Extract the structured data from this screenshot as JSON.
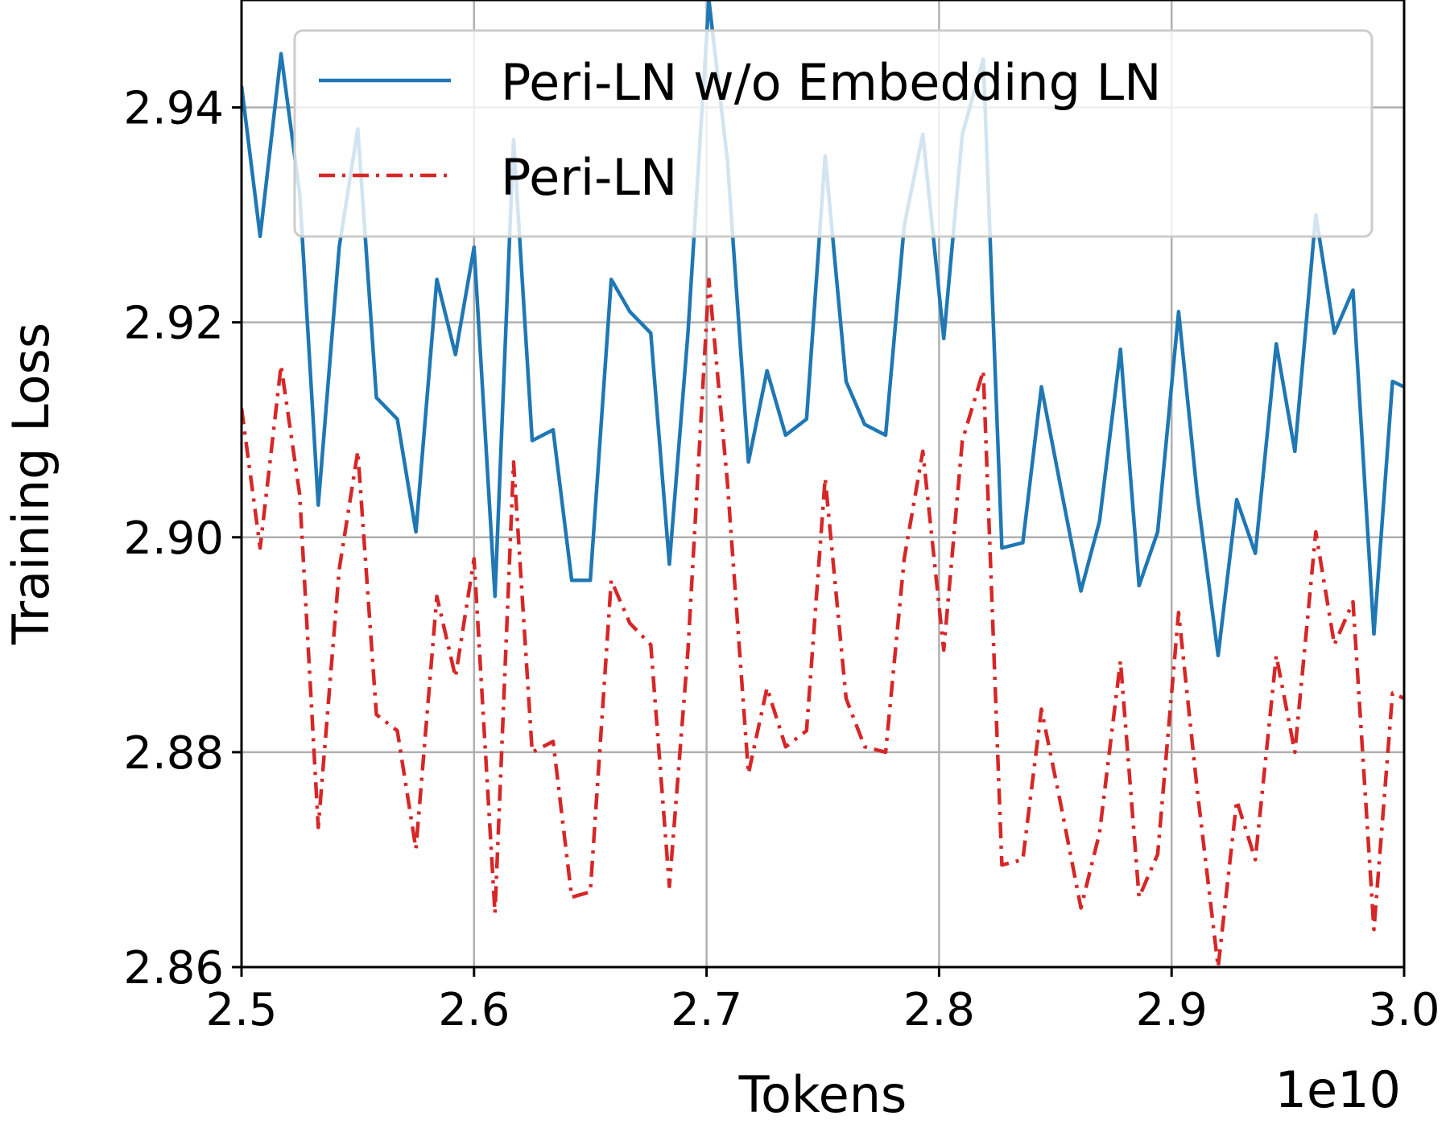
{
  "chart_data": {
    "type": "line",
    "title": "",
    "xlabel": "Tokens",
    "ylabel": "Training Loss",
    "x_offset_label": "1e10",
    "xlim": [
      2.5,
      3.0
    ],
    "ylim": [
      2.86,
      2.95
    ],
    "x_ticks": [
      2.5,
      2.6,
      2.7,
      2.8,
      2.9,
      3.0
    ],
    "x_tick_labels": [
      "2.5",
      "2.6",
      "2.7",
      "2.8",
      "2.9",
      "3.0"
    ],
    "y_ticks": [
      2.86,
      2.88,
      2.9,
      2.92,
      2.94
    ],
    "y_tick_labels": [
      "2.86",
      "2.88",
      "2.90",
      "2.92",
      "2.94"
    ],
    "grid": true,
    "legend_position": "top-right",
    "x": [
      2.5,
      2.508,
      2.517,
      2.525,
      2.533,
      2.542,
      2.55,
      2.558,
      2.567,
      2.575,
      2.584,
      2.592,
      2.6,
      2.609,
      2.617,
      2.625,
      2.634,
      2.642,
      2.65,
      2.659,
      2.667,
      2.676,
      2.684,
      2.692,
      2.701,
      2.709,
      2.718,
      2.726,
      2.734,
      2.743,
      2.751,
      2.76,
      2.768,
      2.777,
      2.785,
      2.793,
      2.802,
      2.81,
      2.819,
      2.827,
      2.836,
      2.844,
      2.852,
      2.861,
      2.869,
      2.878,
      2.886,
      2.894,
      2.903,
      2.911,
      2.92,
      2.928,
      2.936,
      2.945,
      2.953,
      2.962,
      2.97,
      2.978,
      2.987,
      2.995,
      3.0
    ],
    "series": [
      {
        "name": "Peri-LN w/o Embedding LN",
        "color": "#1f77b4",
        "line_style": "solid",
        "values": [
          2.942,
          2.928,
          2.945,
          2.932,
          2.903,
          2.927,
          2.938,
          2.913,
          2.911,
          2.9005,
          2.924,
          2.917,
          2.927,
          2.8945,
          2.937,
          2.909,
          2.91,
          2.896,
          2.896,
          2.924,
          2.921,
          2.919,
          2.8975,
          2.919,
          2.95,
          2.935,
          2.907,
          2.9155,
          2.9095,
          2.911,
          2.9355,
          2.9145,
          2.9105,
          2.9095,
          2.929,
          2.9375,
          2.9185,
          2.9375,
          2.9445,
          2.899,
          2.8995,
          2.914,
          2.905,
          2.895,
          2.9015,
          2.9175,
          2.8955,
          2.9005,
          2.921,
          2.904,
          2.889,
          2.9035,
          2.8985,
          2.918,
          2.908,
          2.93,
          2.919,
          2.923,
          2.891,
          2.9145,
          2.914
        ]
      },
      {
        "name": "Peri-LN",
        "color": "#d62728",
        "line_style": "dashdot",
        "values": [
          2.912,
          2.899,
          2.916,
          2.904,
          2.873,
          2.897,
          2.908,
          2.8835,
          2.882,
          2.871,
          2.8945,
          2.887,
          2.898,
          2.865,
          2.907,
          2.88,
          2.881,
          2.8665,
          2.867,
          2.896,
          2.892,
          2.89,
          2.8675,
          2.8895,
          2.924,
          2.905,
          2.878,
          2.886,
          2.8805,
          2.882,
          2.9055,
          2.885,
          2.8805,
          2.88,
          2.898,
          2.908,
          2.8895,
          2.909,
          2.9155,
          2.8695,
          2.87,
          2.884,
          2.8755,
          2.8655,
          2.8725,
          2.8885,
          2.8665,
          2.8705,
          2.893,
          2.8765,
          2.86,
          2.8755,
          2.87,
          2.889,
          2.88,
          2.9005,
          2.89,
          2.894,
          2.8635,
          2.8855,
          2.885
        ]
      }
    ]
  }
}
